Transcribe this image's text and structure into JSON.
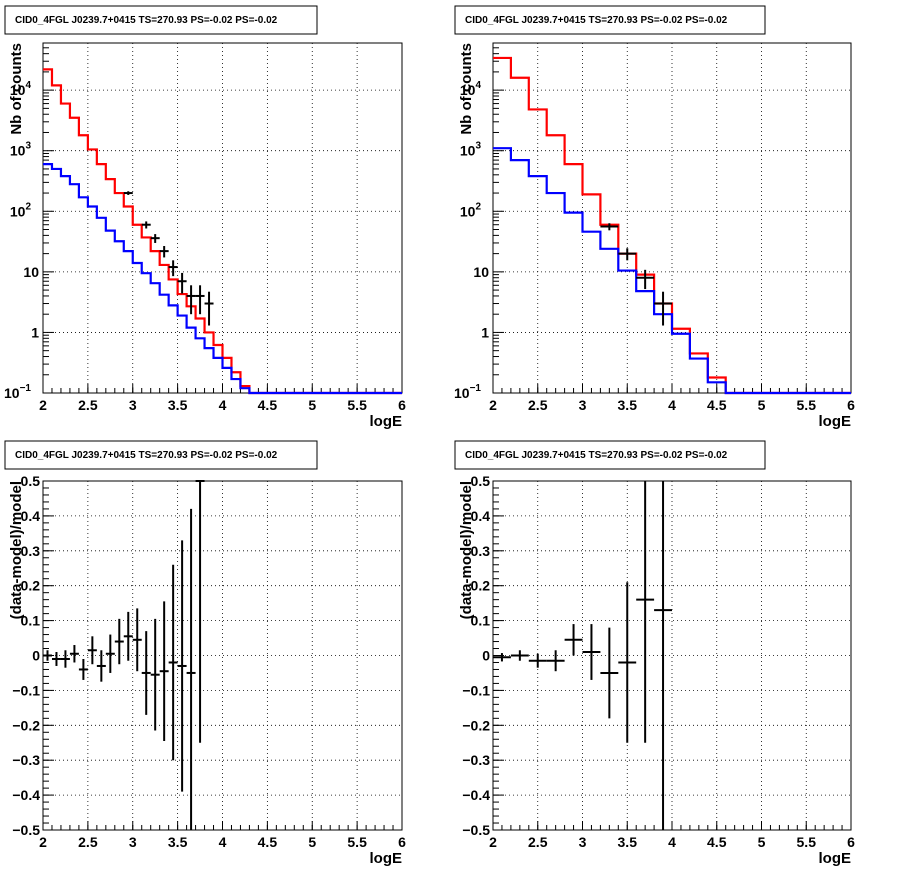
{
  "chart_data": [
    {
      "type": "line",
      "title": "CID0_4FGL J0239.7+0415 TS=270.93 PS=-0.02 PS=-0.02",
      "xlabel": "logE",
      "ylabel": "Nb of counts",
      "xlim": [
        2,
        6
      ],
      "ylim": [
        0.1,
        60000
      ],
      "yscale": "log",
      "grid": true,
      "xticks": [
        "2",
        "2.5",
        "3",
        "3.5",
        "4",
        "4.5",
        "5",
        "5.5",
        "6"
      ],
      "yticks": [
        {
          "v": 0.1,
          "t": "10",
          "sup": "−1"
        },
        {
          "v": 1,
          "t": "1"
        },
        {
          "v": 10,
          "t": "10"
        },
        {
          "v": 100,
          "t": "10",
          "sup": "2"
        },
        {
          "v": 1000,
          "t": "10",
          "sup": "3"
        },
        {
          "v": 10000,
          "t": "10",
          "sup": "4"
        }
      ],
      "bin_edges": [
        2.0,
        2.1,
        2.2,
        2.3,
        2.4,
        2.5,
        2.6,
        2.7,
        2.8,
        2.9,
        3.0,
        3.1,
        3.2,
        3.3,
        3.4,
        3.5,
        3.6,
        3.7,
        3.8,
        3.9,
        4.0,
        4.1,
        4.2,
        4.3,
        4.4,
        4.5,
        4.6,
        4.7,
        4.8,
        4.9,
        5.0,
        5.1,
        5.2,
        5.3,
        5.4,
        5.5,
        5.6,
        5.7,
        5.8,
        5.9,
        6.0
      ],
      "series": [
        {
          "color": "#ff0000",
          "values": [
            22000,
            12000,
            6000,
            3500,
            1800,
            1050,
            600,
            340,
            200,
            120,
            60,
            37,
            22,
            13,
            7.5,
            4.3,
            2.7,
            1.7,
            1.0,
            0.62,
            0.38,
            0.22,
            0.13,
            0.1,
            0.1,
            0.1,
            0.1,
            0.1,
            0.1,
            0.1,
            0.1,
            0.1,
            0.1,
            0.1,
            0.1,
            0.1,
            0.1,
            0.1,
            0.1,
            0.1
          ]
        },
        {
          "color": "#0000ff",
          "values": [
            600,
            500,
            380,
            280,
            170,
            120,
            78,
            48,
            32,
            22,
            14,
            9.5,
            6.5,
            4.2,
            2.8,
            1.9,
            1.2,
            0.8,
            0.55,
            0.38,
            0.26,
            0.17,
            0.12,
            0.1,
            0.1,
            0.1,
            0.1,
            0.1,
            0.1,
            0.1,
            0.1,
            0.1,
            0.1,
            0.1,
            0.1,
            0.1,
            0.1,
            0.1,
            0.1,
            0.1
          ]
        }
      ],
      "points": [
        {
          "x": 2.95,
          "y": 200,
          "yerr": 14
        },
        {
          "x": 3.15,
          "y": 60,
          "yerr": 8
        },
        {
          "x": 3.25,
          "y": 36,
          "yerr": 6
        },
        {
          "x": 3.35,
          "y": 22,
          "yerr": 4.7
        },
        {
          "x": 3.45,
          "y": 12,
          "yerr": 3.5
        },
        {
          "x": 3.55,
          "y": 7,
          "yerr": 2.6
        },
        {
          "x": 3.65,
          "y": 4,
          "yerr": 2.0
        },
        {
          "x": 3.75,
          "y": 4,
          "yerr": 2.0
        },
        {
          "x": 3.85,
          "y": 3,
          "yerr": 1.7
        }
      ]
    },
    {
      "type": "line",
      "title": "CID0_4FGL J0239.7+0415 TS=270.93 PS=-0.02 PS=-0.02",
      "xlabel": "logE",
      "ylabel": "Nb of counts",
      "xlim": [
        2,
        6
      ],
      "ylim": [
        0.1,
        60000
      ],
      "yscale": "log",
      "grid": true,
      "xticks": [
        "2",
        "2.5",
        "3",
        "3.5",
        "4",
        "4.5",
        "5",
        "5.5",
        "6"
      ],
      "yticks": [
        {
          "v": 0.1,
          "t": "10",
          "sup": "−1"
        },
        {
          "v": 1,
          "t": "1"
        },
        {
          "v": 10,
          "t": "10"
        },
        {
          "v": 100,
          "t": "10",
          "sup": "2"
        },
        {
          "v": 1000,
          "t": "10",
          "sup": "3"
        },
        {
          "v": 10000,
          "t": "10",
          "sup": "4"
        }
      ],
      "bin_edges": [
        2.0,
        2.2,
        2.4,
        2.6,
        2.8,
        3.0,
        3.2,
        3.4,
        3.6,
        3.8,
        4.0,
        4.2,
        4.4,
        4.6,
        4.8,
        5.0,
        5.2,
        5.4,
        5.6,
        5.8,
        6.0
      ],
      "series": [
        {
          "color": "#ff0000",
          "values": [
            34000,
            16000,
            4800,
            1800,
            600,
            190,
            60,
            20,
            9,
            3.0,
            1.15,
            0.45,
            0.18,
            0.1,
            0.1,
            0.1,
            0.1,
            0.1,
            0.1,
            0.1
          ]
        },
        {
          "color": "#0000ff",
          "values": [
            1100,
            700,
            380,
            200,
            95,
            46,
            24,
            10.5,
            4.8,
            2.0,
            0.95,
            0.37,
            0.15,
            0.1,
            0.1,
            0.1,
            0.1,
            0.1,
            0.1,
            0.1
          ]
        }
      ],
      "points": [
        {
          "x": 3.3,
          "y": 56,
          "yerr": 7.5
        },
        {
          "x": 3.5,
          "y": 20,
          "yerr": 4.5
        },
        {
          "x": 3.7,
          "y": 8,
          "yerr": 2.8
        },
        {
          "x": 3.9,
          "y": 3,
          "yerr": 1.7
        }
      ]
    },
    {
      "type": "scatter",
      "title": "CID0_4FGL J0239.7+0415 TS=270.93 PS=-0.02 PS=-0.02",
      "xlabel": "logE",
      "ylabel": "(data-model)/model",
      "xlim": [
        2,
        6
      ],
      "ylim": [
        -0.5,
        0.5
      ],
      "grid": true,
      "xticks": [
        "2",
        "2.5",
        "3",
        "3.5",
        "4",
        "4.5",
        "5",
        "5.5",
        "6"
      ],
      "yticks": [
        "−0.5",
        "−0.4",
        "−0.3",
        "−0.2",
        "−0.1",
        "0",
        "0.1",
        "0.2",
        "0.3",
        "0.4",
        "0.5"
      ],
      "xerr": 0.05,
      "points": [
        {
          "x": 2.05,
          "y": 0.0,
          "yerr": 0.015
        },
        {
          "x": 2.15,
          "y": -0.01,
          "yerr": 0.02
        },
        {
          "x": 2.25,
          "y": -0.01,
          "yerr": 0.025
        },
        {
          "x": 2.35,
          "y": 0.005,
          "yerr": 0.025
        },
        {
          "x": 2.45,
          "y": -0.04,
          "yerr": 0.03
        },
        {
          "x": 2.55,
          "y": 0.015,
          "yerr": 0.04
        },
        {
          "x": 2.65,
          "y": -0.03,
          "yerr": 0.045
        },
        {
          "x": 2.75,
          "y": 0.005,
          "yerr": 0.055
        },
        {
          "x": 2.85,
          "y": 0.04,
          "yerr": 0.065
        },
        {
          "x": 2.95,
          "y": 0.055,
          "yerr": 0.07
        },
        {
          "x": 3.05,
          "y": 0.045,
          "yerr": 0.09
        },
        {
          "x": 3.15,
          "y": -0.05,
          "yerr": 0.12
        },
        {
          "x": 3.25,
          "y": -0.055,
          "yerr": 0.16
        },
        {
          "x": 3.35,
          "y": -0.045,
          "yerr": 0.2
        },
        {
          "x": 3.45,
          "y": -0.02,
          "yerr": 0.28
        },
        {
          "x": 3.55,
          "y": -0.03,
          "yerr": 0.36
        },
        {
          "x": 3.65,
          "y": -0.05,
          "yerr": 0.47
        },
        {
          "x": 3.75,
          "y": 0.5,
          "yerr": 0.75
        }
      ]
    },
    {
      "type": "scatter",
      "title": "CID0_4FGL J0239.7+0415 TS=270.93 PS=-0.02 PS=-0.02",
      "xlabel": "logE",
      "ylabel": "(data-model)/model",
      "xlim": [
        2,
        6
      ],
      "ylim": [
        -0.5,
        0.5
      ],
      "grid": true,
      "xticks": [
        "2",
        "2.5",
        "3",
        "3.5",
        "4",
        "4.5",
        "5",
        "5.5",
        "6"
      ],
      "yticks": [
        "−0.5",
        "−0.4",
        "−0.3",
        "−0.2",
        "−0.1",
        "0",
        "0.1",
        "0.2",
        "0.3",
        "0.4",
        "0.5"
      ],
      "xerr": 0.1,
      "points": [
        {
          "x": 2.1,
          "y": -0.005,
          "yerr": 0.012
        },
        {
          "x": 2.3,
          "y": 0.0,
          "yerr": 0.015
        },
        {
          "x": 2.5,
          "y": -0.015,
          "yerr": 0.02
        },
        {
          "x": 2.7,
          "y": -0.015,
          "yerr": 0.03
        },
        {
          "x": 2.9,
          "y": 0.045,
          "yerr": 0.045
        },
        {
          "x": 3.1,
          "y": 0.01,
          "yerr": 0.08
        },
        {
          "x": 3.3,
          "y": -0.05,
          "yerr": 0.13
        },
        {
          "x": 3.5,
          "y": -0.02,
          "yerr": 0.23
        },
        {
          "x": 3.7,
          "y": 0.16,
          "yerr": 0.41
        },
        {
          "x": 3.9,
          "y": 0.13,
          "yerr": 0.7
        }
      ]
    }
  ]
}
